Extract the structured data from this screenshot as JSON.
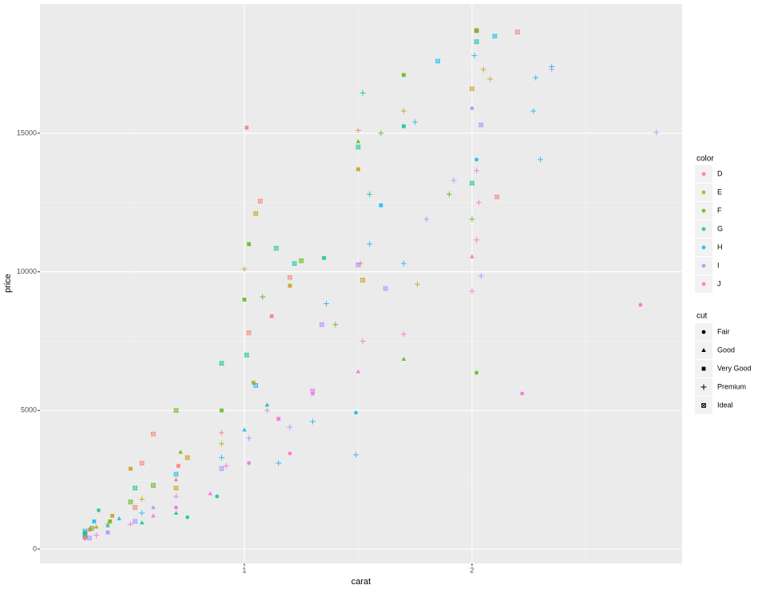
{
  "chart_data": {
    "type": "scatter",
    "xlabel": "carat",
    "ylabel": "price",
    "xlim": [
      0.102,
      2.923
    ],
    "ylim": [
      -518,
      19660
    ],
    "xticks": [
      1,
      2
    ],
    "yticks": [
      0,
      5000,
      10000,
      15000
    ],
    "x_minor_ticks": [
      0.5,
      1.5,
      2.5
    ],
    "y_minor_ticks": [
      2500,
      7500,
      12500,
      17500
    ],
    "grid": true,
    "color_legend_title": "color",
    "shape_legend_title": "cut",
    "shape_legend": {
      "names": [
        "Fair",
        "Good",
        "Very Good",
        "Premium",
        "Ideal"
      ],
      "shapes": [
        "circle",
        "triangle",
        "square",
        "plus",
        "square-cross"
      ]
    },
    "series": [
      {
        "name": "D",
        "color": "#F8766D",
        "x": [
          0.3,
          0.32,
          0.4,
          0.52,
          0.55,
          0.6,
          0.7,
          0.71,
          0.9,
          1.01,
          1.02,
          1.07,
          1.12,
          1.2,
          1.5,
          1.51,
          2.0,
          2.02,
          2.2,
          2.11
        ],
        "y": [
          550,
          700,
          900,
          1500,
          3100,
          4150,
          2500,
          3000,
          4200,
          15200,
          7800,
          12550,
          8400,
          9800,
          15100,
          10300,
          10550,
          18700,
          18650,
          12700
        ],
        "cut": [
          "Ideal",
          "Very Good",
          "Premium",
          "Ideal",
          "Ideal",
          "Ideal",
          "Good",
          "Very Good",
          "Premium",
          "Very Good",
          "Ideal",
          "Ideal",
          "Very Good",
          "Ideal",
          "Premium",
          "Premium",
          "Good",
          "Very Good",
          "Ideal",
          "Ideal"
        ]
      },
      {
        "name": "E",
        "color": "#C49A00",
        "x": [
          0.3,
          0.35,
          0.42,
          0.5,
          0.55,
          0.7,
          0.75,
          0.9,
          1.0,
          1.05,
          1.04,
          1.2,
          1.5,
          1.52,
          1.7,
          1.76,
          2.0,
          2.05,
          2.08
        ],
        "y": [
          450,
          800,
          1200,
          2900,
          1800,
          2200,
          3300,
          3800,
          10100,
          12100,
          6000,
          9500,
          13700,
          9700,
          15800,
          9550,
          16600,
          17300,
          16950
        ],
        "cut": [
          "Ideal",
          "Good",
          "Very Good",
          "Very Good",
          "Premium",
          "Ideal",
          "Ideal",
          "Premium",
          "Premium",
          "Ideal",
          "Very Good",
          "Very Good",
          "Very Good",
          "Ideal",
          "Premium",
          "Premium",
          "Ideal",
          "Premium",
          "Premium"
        ]
      },
      {
        "name": "F",
        "color": "#53B400",
        "x": [
          0.3,
          0.33,
          0.41,
          0.5,
          0.6,
          0.7,
          0.72,
          0.9,
          1.0,
          1.02,
          1.08,
          1.25,
          1.4,
          1.5,
          1.6,
          1.7,
          1.7,
          1.9,
          2.02,
          2.02,
          2.0
        ],
        "y": [
          600,
          750,
          1000,
          1700,
          2300,
          5000,
          3500,
          5000,
          9000,
          11000,
          9100,
          10400,
          8100,
          14700,
          15000,
          17100,
          6850,
          12800,
          18700,
          6360,
          11900
        ],
        "cut": [
          "Fair",
          "Ideal",
          "Very Good",
          "Ideal",
          "Ideal",
          "Ideal",
          "Good",
          "Very Good",
          "Very Good",
          "Very Good",
          "Premium",
          "Ideal",
          "Premium",
          "Good",
          "Premium",
          "Very Good",
          "Good",
          "Premium",
          "Ideal",
          "Fair",
          "Premium"
        ]
      },
      {
        "name": "G",
        "color": "#00C094",
        "x": [
          0.3,
          0.36,
          0.4,
          0.52,
          0.55,
          0.7,
          0.75,
          0.9,
          1.01,
          1.1,
          1.14,
          1.22,
          1.35,
          1.5,
          1.52,
          1.55,
          1.7,
          2.0,
          2.02,
          0.88
        ],
        "y": [
          500,
          1400,
          850,
          2200,
          950,
          1300,
          1150,
          6700,
          7000,
          5200,
          10850,
          10300,
          10500,
          14500,
          16450,
          12800,
          15250,
          13200,
          18300,
          1900
        ],
        "cut": [
          "Ideal",
          "Fair",
          "Good",
          "Ideal",
          "Good",
          "Good",
          "Fair",
          "Ideal",
          "Ideal",
          "Good",
          "Ideal",
          "Ideal",
          "Very Good",
          "Ideal",
          "Premium",
          "Premium",
          "Very Good",
          "Ideal",
          "Ideal",
          "Fair"
        ]
      },
      {
        "name": "H",
        "color": "#00B6EB",
        "x": [
          0.3,
          0.34,
          0.45,
          0.55,
          0.7,
          0.9,
          1.0,
          1.05,
          1.15,
          1.3,
          1.36,
          1.49,
          1.49,
          1.55,
          1.6,
          1.7,
          1.75,
          1.85,
          2.01,
          2.1,
          2.02,
          2.28,
          2.27,
          2.3,
          2.35
        ],
        "y": [
          650,
          1000,
          1100,
          1300,
          2700,
          3300,
          4300,
          5900,
          3100,
          4600,
          8850,
          3400,
          4920,
          11000,
          12400,
          10300,
          15400,
          17600,
          17800,
          18500,
          14050,
          17000,
          15800,
          14050,
          17400
        ],
        "cut": [
          "Ideal",
          "Very Good",
          "Good",
          "Premium",
          "Ideal",
          "Premium",
          "Good",
          "Ideal",
          "Premium",
          "Premium",
          "Premium",
          "Premium",
          "Fair",
          "Premium",
          "Very Good",
          "Premium",
          "Premium",
          "Ideal",
          "Premium",
          "Ideal",
          "Fair",
          "Premium",
          "Premium",
          "Premium",
          "Premium"
        ]
      },
      {
        "name": "I",
        "color": "#A58AFF",
        "x": [
          0.32,
          0.4,
          0.52,
          0.6,
          0.7,
          0.9,
          1.02,
          1.1,
          1.2,
          1.3,
          1.34,
          1.5,
          1.62,
          1.8,
          1.92,
          2.0,
          2.04,
          2.04,
          2.35,
          2.81
        ],
        "y": [
          400,
          600,
          1000,
          1500,
          1900,
          2900,
          4000,
          5000,
          4400,
          5600,
          8100,
          10250,
          9400,
          11900,
          13300,
          15900,
          15300,
          9850,
          17300,
          15030
        ],
        "cut": [
          "Ideal",
          "Very Good",
          "Ideal",
          "Good",
          "Premium",
          "Ideal",
          "Premium",
          "Premium",
          "Premium",
          "Good",
          "Ideal",
          "Ideal",
          "Ideal",
          "Premium",
          "Premium",
          "Fair",
          "Ideal",
          "Premium",
          "Premium",
          "Premium"
        ]
      },
      {
        "name": "J",
        "color": "#FB61D7",
        "x": [
          0.3,
          0.35,
          0.5,
          0.6,
          0.7,
          0.85,
          0.92,
          1.02,
          1.15,
          1.2,
          1.3,
          1.5,
          1.52,
          1.7,
          2.0,
          2.02,
          2.02,
          2.03,
          2.22,
          2.74
        ],
        "y": [
          380,
          500,
          900,
          1200,
          1500,
          2000,
          3000,
          3100,
          4700,
          3450,
          5700,
          6400,
          7500,
          7750,
          9300,
          11150,
          13650,
          12500,
          5610,
          8810
        ],
        "cut": [
          "Fair",
          "Premium",
          "Premium",
          "Good",
          "Fair",
          "Good",
          "Premium",
          "Fair",
          "Very Good",
          "Fair",
          "Ideal",
          "Good",
          "Premium",
          "Premium",
          "Premium",
          "Premium",
          "Premium",
          "Premium",
          "Fair",
          "Fair"
        ]
      }
    ]
  }
}
